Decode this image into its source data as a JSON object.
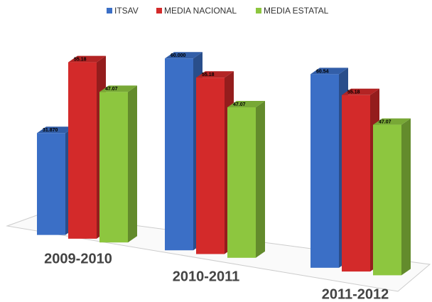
{
  "chart_data": {
    "type": "bar3d",
    "categories": [
      "2009-2010",
      "2010-2011",
      "2011-2012"
    ],
    "series": [
      {
        "name": "ITSAV",
        "color": "#3b6fc6",
        "values": [
          31.87,
          60,
          60.54
        ],
        "value_labels": [
          "31.870",
          "60.000",
          "60.54"
        ]
      },
      {
        "name": "MEDIA NACIONAL",
        "color": "#d32a2a",
        "values": [
          55.18,
          55.18,
          55.18
        ],
        "value_labels": [
          "55.18",
          "55.18",
          "55.18"
        ]
      },
      {
        "name": "MEDIA ESTATAL",
        "color": "#8dc63f",
        "values": [
          47.07,
          47.07,
          47.07
        ],
        "value_labels": [
          "47.07",
          "47.07",
          "47.07"
        ]
      }
    ],
    "legend": "top"
  }
}
